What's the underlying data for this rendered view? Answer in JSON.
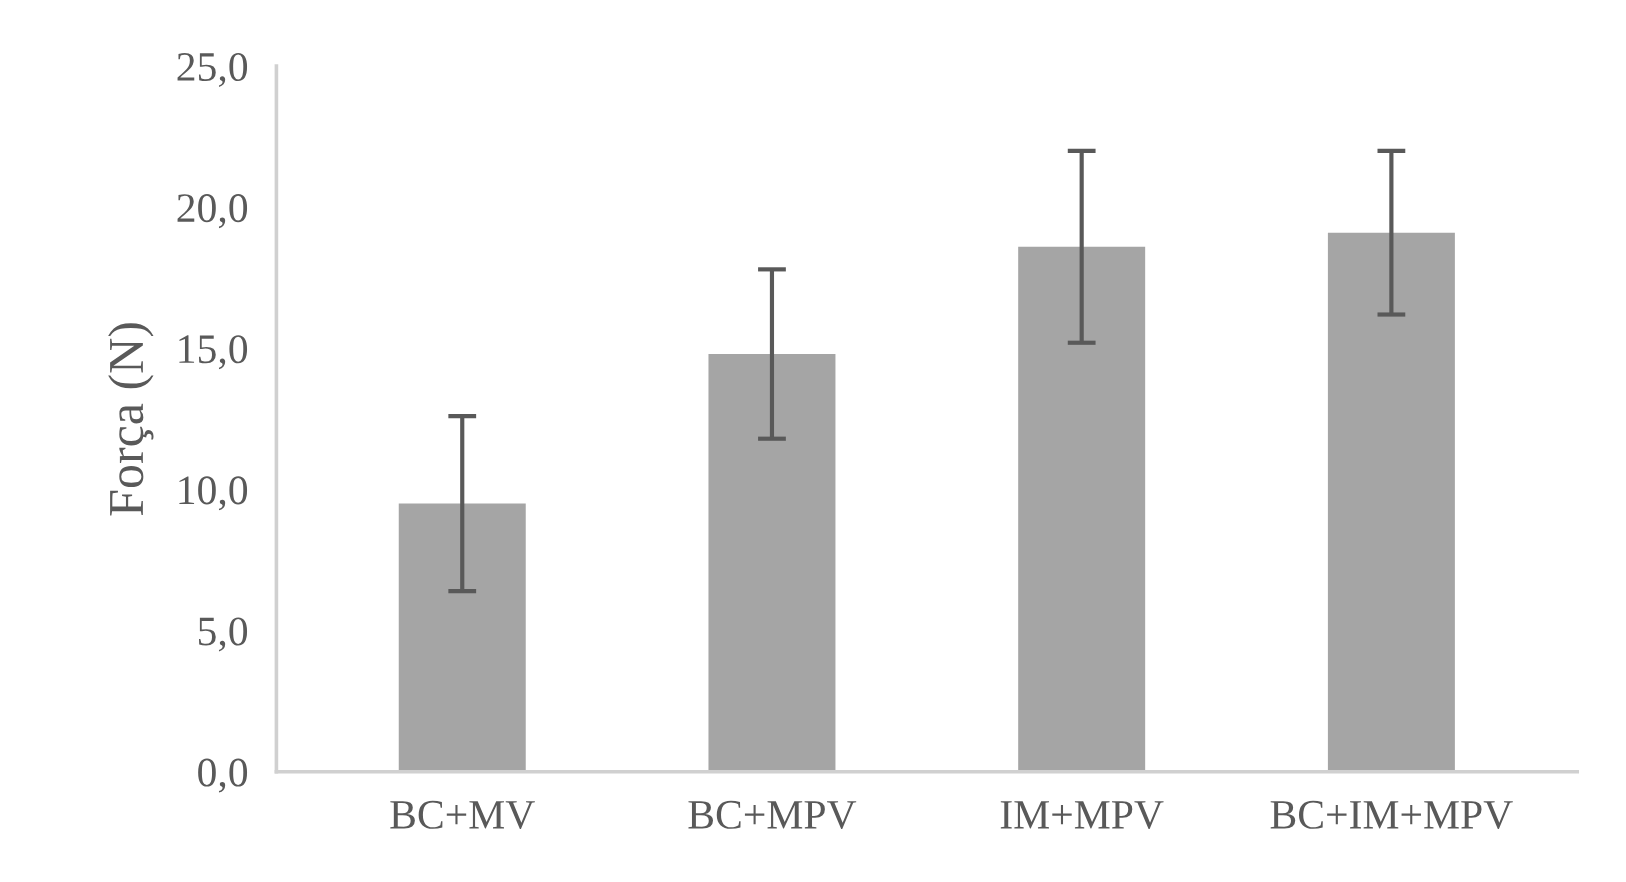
{
  "chart_data": {
    "type": "bar",
    "ylabel": "Força (N)",
    "categories": [
      "BC+MV",
      "BC+MPV",
      "IM+MPV",
      "BC+IM+MPV"
    ],
    "values": [
      9.5,
      14.8,
      18.6,
      19.1
    ],
    "errors": [
      3.1,
      3.0,
      3.4,
      2.9
    ],
    "color": "#a5a5a5",
    "ylim": [
      0,
      25
    ],
    "yticks": [
      {
        "value": 0,
        "label": "0,0"
      },
      {
        "value": 5,
        "label": "5,0"
      },
      {
        "value": 10,
        "label": "10,0"
      },
      {
        "value": 15,
        "label": "15,0"
      },
      {
        "value": 20,
        "label": "20,0"
      },
      {
        "value": 25,
        "label": "25,0"
      }
    ],
    "grid": false,
    "legend": false
  }
}
